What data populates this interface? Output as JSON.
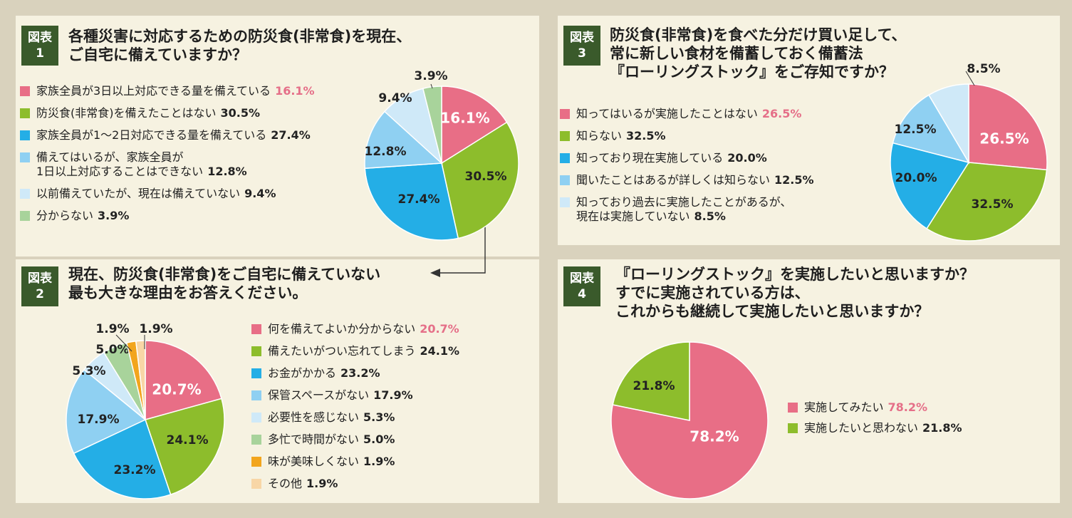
{
  "colors": {
    "pink": "#e86e86",
    "green": "#8dbd2c",
    "blue": "#24aee6",
    "lightblue": "#8fd0f2",
    "paleblue": "#cfe9f8",
    "sage": "#a8d39b",
    "orange": "#f2a51d",
    "peach": "#f8d6a6",
    "badge": "#3a5a2b",
    "highlight": "#e56f88"
  },
  "badge_top": "図表",
  "figures": [
    {
      "number": "1",
      "title": "各種災害に対応するための防災食(非常食)を現在、\nご自宅に備えていますか？"
    },
    {
      "number": "2",
      "title": "現在、防災食(非常食)をご自宅に備えていない\n最も大きな理由をお答えください。"
    },
    {
      "number": "3",
      "title": "防災食(非常食)を食べた分だけ買い足して、\n常に新しい食材を備蓄しておく備蓄法\n『ローリングストック』をご存知ですか？"
    },
    {
      "number": "4",
      "title": "『ローリングストック』を実施したいと思いますか？\nすでに実施されている方は、\nこれからも継続して実施したいと思いますか？"
    }
  ],
  "chart_data": [
    {
      "type": "pie",
      "title": "各種災害に対応するための防災食(非常食)を現在、ご自宅に備えていますか？",
      "unit": "%",
      "slices": [
        {
          "label": "家族全員が3日以上対応できる量を備えている",
          "value": 16.1,
          "display": "16.1%",
          "color": "#e86e86"
        },
        {
          "label": "防災食(非常食)を備えたことはない",
          "value": 30.5,
          "display": "30.5%",
          "color": "#8dbd2c"
        },
        {
          "label": "家族全員が1～2日対応できる量を備えている",
          "value": 27.4,
          "display": "27.4%",
          "color": "#24aee6"
        },
        {
          "label": "備えてはいるが、家族全員が\n1日以上対応することはできない",
          "value": 12.8,
          "display": "12.8%",
          "color": "#8fd0f2"
        },
        {
          "label": "以前備えていたが、現在は備えていない",
          "value": 9.4,
          "display": "9.4%",
          "color": "#cfe9f8"
        },
        {
          "label": "分からない",
          "value": 3.9,
          "display": "3.9%",
          "color": "#a8d39b"
        }
      ]
    },
    {
      "type": "pie",
      "title": "現在、防災食(非常食)をご自宅に備えていない最も大きな理由をお答えください。",
      "unit": "%",
      "slices": [
        {
          "label": "何を備えてよいか分からない",
          "value": 20.7,
          "display": "20.7%",
          "color": "#e86e86"
        },
        {
          "label": "備えたいがつい忘れてしまう",
          "value": 24.1,
          "display": "24.1%",
          "color": "#8dbd2c"
        },
        {
          "label": "お金がかかる",
          "value": 23.2,
          "display": "23.2%",
          "color": "#24aee6"
        },
        {
          "label": "保管スペースがない",
          "value": 17.9,
          "display": "17.9%",
          "color": "#8fd0f2"
        },
        {
          "label": "必要性を感じない",
          "value": 5.3,
          "display": "5.3%",
          "color": "#cfe9f8"
        },
        {
          "label": "多忙で時間がない",
          "value": 5.0,
          "display": "5.0%",
          "color": "#a8d39b"
        },
        {
          "label": "味が美味しくない",
          "value": 1.9,
          "display": "1.9%",
          "color": "#f2a51d"
        },
        {
          "label": "その他",
          "value": 1.9,
          "display": "1.9%",
          "color": "#f8d6a6"
        }
      ]
    },
    {
      "type": "pie",
      "title": "防災食(非常食)を食べた分だけ買い足して、常に新しい食材を備蓄しておく備蓄法『ローリングストック』をご存知ですか？",
      "unit": "%",
      "slices": [
        {
          "label": "知ってはいるが実施したことはない",
          "value": 26.5,
          "display": "26.5%",
          "color": "#e86e86"
        },
        {
          "label": "知らない",
          "value": 32.5,
          "display": "32.5%",
          "color": "#8dbd2c"
        },
        {
          "label": "知っており現在実施している",
          "value": 20.0,
          "display": "20.0%",
          "color": "#24aee6"
        },
        {
          "label": "聞いたことはあるが詳しくは知らない",
          "value": 12.5,
          "display": "12.5%",
          "color": "#8fd0f2"
        },
        {
          "label": "知っており過去に実施したことがあるが、\n現在は実施していない",
          "value": 8.5,
          "display": "8.5%",
          "color": "#cfe9f8"
        }
      ]
    },
    {
      "type": "pie",
      "title": "『ローリングストック』を実施したいと思いますか？すでに実施されている方は、これからも継続して実施したいと思いますか？",
      "unit": "%",
      "slices": [
        {
          "label": "実施してみたい",
          "value": 78.2,
          "display": "78.2%",
          "color": "#e86e86"
        },
        {
          "label": "実施したいと思わない",
          "value": 21.8,
          "display": "21.8%",
          "color": "#8dbd2c"
        }
      ]
    }
  ]
}
